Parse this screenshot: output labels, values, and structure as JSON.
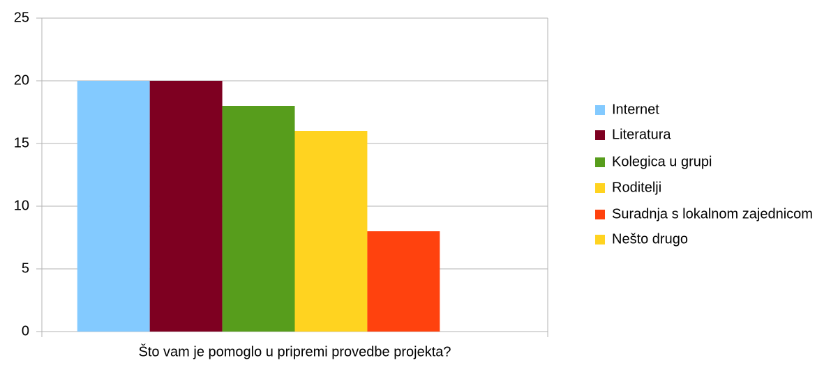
{
  "chart_data": {
    "type": "bar",
    "categories": [
      "Što vam je pomoglo u pripremi provedbe projekta?"
    ],
    "series": [
      {
        "name": "Internet",
        "color": "#83caff",
        "values": [
          20
        ]
      },
      {
        "name": "Literatura",
        "color": "#7e0021",
        "values": [
          20
        ]
      },
      {
        "name": "Kolegica u grupi",
        "color": "#579d1c",
        "values": [
          18
        ]
      },
      {
        "name": "Roditelji",
        "color": "#ffd320",
        "values": [
          16
        ]
      },
      {
        "name": "Suradnja s lokalnom zajednicom",
        "color": "#ff420e",
        "values": [
          8
        ]
      },
      {
        "name": "Nešto drugo",
        "color": "#ffd320",
        "values": [
          0
        ]
      }
    ],
    "ylim": [
      0,
      25
    ],
    "yticks": [
      0,
      5,
      10,
      15,
      20,
      25
    ],
    "grid": true,
    "legend": "right"
  }
}
